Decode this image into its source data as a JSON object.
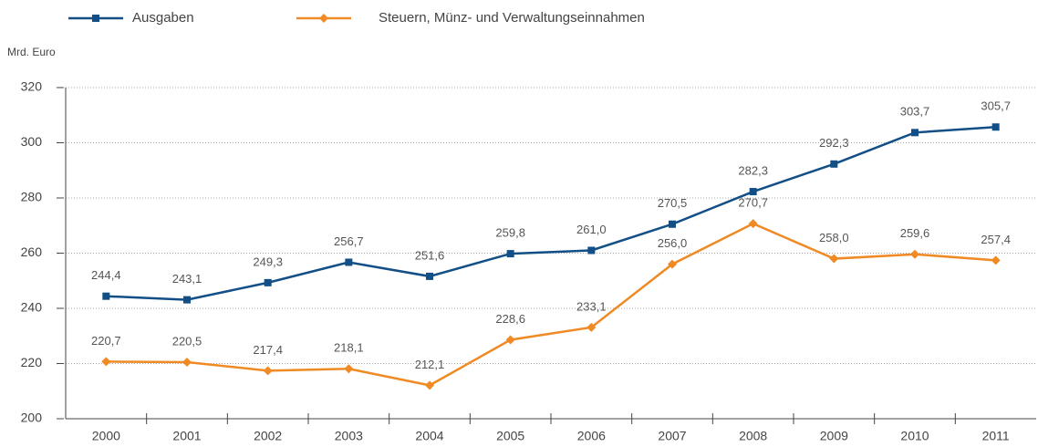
{
  "chart_data": {
    "type": "line",
    "y_label": "Mrd. Euro",
    "categories": [
      "2000",
      "2001",
      "2002",
      "2003",
      "2004",
      "2005",
      "2006",
      "2007",
      "2008",
      "2009",
      "2010",
      "2011"
    ],
    "series": [
      {
        "name": "Ausgaben",
        "color": "#124f86",
        "marker": "square",
        "values": [
          244.4,
          243.1,
          249.3,
          256.7,
          251.6,
          259.8,
          261.0,
          270.5,
          282.3,
          292.3,
          303.7,
          305.7
        ],
        "value_labels": [
          "244,4",
          "243,1",
          "249,3",
          "256,7",
          "251,6",
          "259,8",
          "261,0",
          "270,5",
          "282,3",
          "292,3",
          "303,7",
          "305,7"
        ]
      },
      {
        "name": "Steuern, Münz- und Verwaltungseinnahmen",
        "color": "#f08a24",
        "marker": "diamond",
        "values": [
          220.7,
          220.5,
          217.4,
          218.1,
          212.1,
          228.6,
          233.1,
          256.0,
          270.7,
          258.0,
          259.6,
          257.4
        ],
        "value_labels": [
          "220,7",
          "220,5",
          "217,4",
          "218,1",
          "212,1",
          "228,6",
          "233,1",
          "256,0",
          "270,7",
          "258,0",
          "259,6",
          "257,4"
        ]
      }
    ],
    "ylim": [
      200,
      320
    ],
    "yticks": [
      200,
      220,
      240,
      260,
      280,
      300,
      320
    ],
    "grid": true
  }
}
